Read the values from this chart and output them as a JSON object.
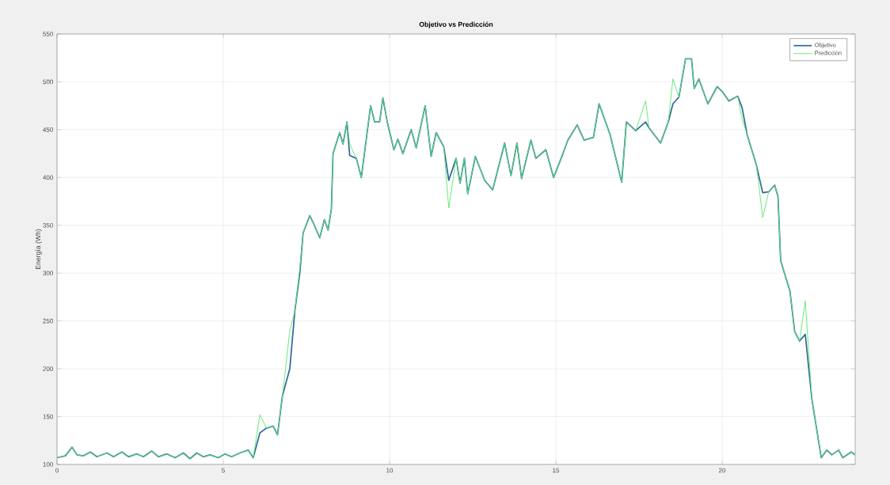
{
  "chart_data": {
    "type": "line",
    "title": "Objetivo vs Predicción",
    "ylabel": "Energía (Wh)",
    "xlim": [
      0,
      24
    ],
    "ylim": [
      100,
      550
    ],
    "xticks": [
      0,
      5,
      10,
      15,
      20
    ],
    "yticks": [
      100,
      150,
      200,
      250,
      300,
      350,
      400,
      450,
      500,
      550
    ],
    "grid": true,
    "legend": "top right",
    "x": [
      0,
      0.25,
      0.45,
      0.6,
      0.8,
      1.0,
      1.2,
      1.5,
      1.7,
      1.95,
      2.15,
      2.4,
      2.6,
      2.85,
      3.05,
      3.3,
      3.55,
      3.8,
      4.0,
      4.2,
      4.4,
      4.6,
      4.85,
      5.05,
      5.25,
      5.5,
      5.75,
      5.9,
      6.1,
      6.3,
      6.5,
      6.63,
      6.78,
      7.0,
      7.15,
      7.3,
      7.4,
      7.6,
      7.7,
      7.9,
      8.04,
      8.15,
      8.25,
      8.3,
      8.5,
      8.6,
      8.72,
      8.8,
      9.0,
      9.15,
      9.43,
      9.55,
      9.7,
      9.8,
      9.93,
      10.13,
      10.25,
      10.4,
      10.65,
      10.8,
      11.07,
      11.25,
      11.4,
      11.63,
      11.78,
      12.0,
      12.12,
      12.25,
      12.35,
      12.58,
      12.86,
      13.1,
      13.46,
      13.65,
      13.83,
      13.97,
      14.25,
      14.4,
      14.7,
      14.93,
      15.16,
      15.36,
      15.64,
      15.85,
      16.13,
      16.3,
      16.63,
      16.98,
      17.12,
      17.4,
      17.7,
      17.8,
      18.15,
      18.38,
      18.52,
      18.7,
      18.9,
      19.08,
      19.16,
      19.3,
      19.57,
      19.85,
      20.0,
      20.2,
      20.47,
      20.6,
      20.75,
      21.03,
      21.22,
      21.4,
      21.58,
      21.68,
      21.76,
      22.04,
      22.18,
      22.33,
      22.5,
      22.7,
      22.98,
      23.15,
      23.3,
      23.5,
      23.63,
      23.88,
      24
    ],
    "series": [
      {
        "name": "Objetivo",
        "color": "#2f6b9a",
        "values": [
          107,
          109,
          118,
          110,
          109,
          113,
          108,
          112,
          108,
          113,
          108,
          111,
          108,
          114,
          108,
          111,
          107,
          112,
          106,
          112,
          108,
          110,
          107,
          111,
          108,
          112,
          115,
          107,
          133,
          138,
          140,
          131,
          172,
          200,
          260,
          300,
          342,
          360,
          353,
          337,
          356,
          345,
          367,
          425,
          447,
          435,
          458,
          423,
          420,
          400,
          475,
          458,
          458,
          483,
          458,
          429,
          440,
          425,
          450,
          431,
          475,
          422,
          447,
          432,
          397,
          420,
          394,
          420,
          383,
          422,
          397,
          387,
          436,
          402,
          436,
          399,
          439,
          420,
          429,
          400,
          420,
          439,
          455,
          439,
          442,
          477,
          445,
          395,
          458,
          449,
          458,
          452,
          436,
          458,
          477,
          484,
          524,
          524,
          493,
          503,
          477,
          495,
          490,
          480,
          485,
          473,
          445,
          413,
          384,
          385,
          392,
          380,
          313,
          281,
          239,
          229,
          236,
          168,
          107,
          115,
          110,
          115,
          107,
          113,
          110
        ]
      },
      {
        "name": "Predicción",
        "color": "#5ee870",
        "values": [
          107,
          109,
          118,
          110,
          109,
          113,
          108,
          112,
          108,
          113,
          108,
          111,
          108,
          114,
          108,
          111,
          107,
          112,
          106,
          112,
          108,
          110,
          107,
          111,
          108,
          112,
          115,
          107,
          152,
          138,
          140,
          131,
          172,
          240,
          260,
          305,
          342,
          360,
          353,
          337,
          356,
          345,
          367,
          425,
          447,
          435,
          458,
          435,
          420,
          400,
          475,
          458,
          458,
          483,
          458,
          429,
          440,
          425,
          450,
          431,
          475,
          422,
          447,
          432,
          368,
          420,
          394,
          420,
          383,
          422,
          397,
          387,
          436,
          402,
          436,
          399,
          439,
          420,
          429,
          400,
          420,
          439,
          455,
          439,
          442,
          477,
          445,
          395,
          458,
          449,
          480,
          452,
          436,
          458,
          503,
          484,
          524,
          524,
          493,
          503,
          477,
          495,
          490,
          480,
          485,
          461,
          445,
          413,
          358,
          385,
          392,
          380,
          313,
          281,
          239,
          229,
          271,
          168,
          107,
          115,
          110,
          115,
          107,
          113,
          110
        ]
      }
    ]
  }
}
